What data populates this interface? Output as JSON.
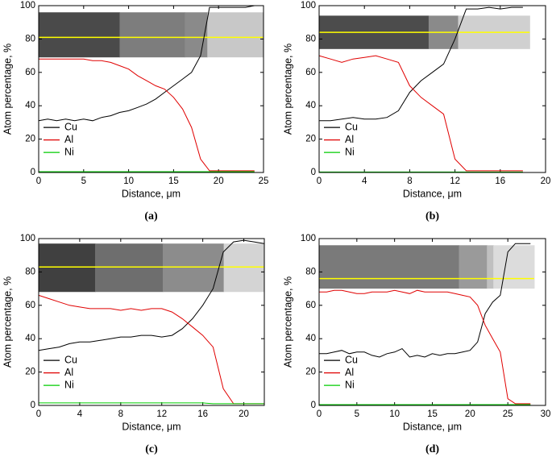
{
  "chart_data": [
    {
      "type": "line",
      "label": "(a)",
      "xlabel": "Distance, μm",
      "ylabel": "Atom percentage, %",
      "xlim": [
        0,
        25
      ],
      "xticks": [
        0,
        5,
        10,
        15,
        20,
        25
      ],
      "ylim": [
        0,
        100
      ],
      "yticks": [
        0,
        20,
        40,
        60,
        80,
        100
      ],
      "x": [
        0,
        1,
        2,
        3,
        4,
        5,
        6,
        7,
        8,
        9,
        10,
        11,
        12,
        13,
        14,
        15,
        16,
        17,
        18,
        19,
        20,
        21,
        22,
        23,
        24
      ],
      "series": [
        {
          "name": "Cu",
          "color": "#000000",
          "values": [
            31,
            32,
            31,
            32,
            31,
            32,
            31,
            33,
            34,
            36,
            37,
            39,
            41,
            44,
            48,
            52,
            56,
            60,
            70,
            99,
            99,
            99,
            99,
            99,
            100
          ]
        },
        {
          "name": "Al",
          "color": "#e00000",
          "values": [
            68,
            68,
            68,
            68,
            68,
            68,
            67,
            67,
            66,
            64,
            62,
            58,
            55,
            52,
            50,
            45,
            38,
            27,
            8,
            1,
            1,
            1,
            1,
            1,
            1
          ]
        },
        {
          "name": "Ni",
          "color": "#00cc00",
          "values": [
            0.5,
            0.5,
            0.5,
            0.5,
            0.5,
            0.5,
            0.5,
            0.5,
            0.5,
            0.5,
            0.5,
            0.5,
            0.5,
            0.5,
            0.5,
            0.5,
            0.5,
            0.5,
            0.5,
            0.5,
            0.5,
            0.5,
            0.5,
            0.5,
            0.5
          ]
        }
      ]
    },
    {
      "type": "line",
      "label": "(b)",
      "xlabel": "Distance, μm",
      "ylabel": "Atom percentage, %",
      "xlim": [
        0,
        20
      ],
      "xticks": [
        0,
        4,
        8,
        12,
        16,
        20
      ],
      "ylim": [
        0,
        100
      ],
      "yticks": [
        0,
        20,
        40,
        60,
        80,
        100
      ],
      "x": [
        0,
        1,
        2,
        3,
        4,
        5,
        6,
        7,
        8,
        9,
        10,
        11,
        12,
        13,
        14,
        15,
        16,
        17,
        18
      ],
      "series": [
        {
          "name": "Cu",
          "color": "#000000",
          "values": [
            31,
            31,
            32,
            33,
            32,
            32,
            33,
            37,
            48,
            55,
            60,
            65,
            80,
            98,
            98,
            99,
            98,
            99,
            99
          ]
        },
        {
          "name": "Al",
          "color": "#e00000",
          "values": [
            70,
            68,
            66,
            68,
            69,
            70,
            68,
            66,
            52,
            45,
            40,
            35,
            8,
            1,
            1,
            1,
            1,
            1,
            1
          ]
        },
        {
          "name": "Ni",
          "color": "#00cc00",
          "values": [
            0.3,
            0.3,
            0.3,
            0.3,
            0.3,
            0.3,
            0.3,
            0.3,
            0.3,
            0.3,
            0.3,
            0.3,
            0.3,
            0.3,
            0.3,
            0.3,
            0.3,
            0.3,
            0.3
          ]
        }
      ]
    },
    {
      "type": "line",
      "label": "(c)",
      "xlabel": "Distance, μm",
      "ylabel": "Atom percentage, %",
      "xlim": [
        0,
        22
      ],
      "xticks": [
        0,
        4,
        8,
        12,
        16,
        20
      ],
      "ylim": [
        0,
        100
      ],
      "yticks": [
        0,
        20,
        40,
        60,
        80,
        100
      ],
      "x": [
        0,
        1,
        2,
        3,
        4,
        5,
        6,
        7,
        8,
        9,
        10,
        11,
        12,
        13,
        14,
        15,
        16,
        17,
        18,
        19,
        20,
        21,
        22
      ],
      "series": [
        {
          "name": "Cu",
          "color": "#000000",
          "values": [
            33,
            34,
            35,
            37,
            38,
            38,
            39,
            40,
            41,
            41,
            42,
            42,
            41,
            42,
            46,
            52,
            60,
            70,
            92,
            98,
            99,
            98,
            97
          ]
        },
        {
          "name": "Al",
          "color": "#e00000",
          "values": [
            66,
            64,
            62,
            60,
            59,
            58,
            58,
            58,
            57,
            58,
            57,
            58,
            58,
            56,
            52,
            47,
            42,
            35,
            10,
            1,
            1,
            1,
            1
          ]
        },
        {
          "name": "Ni",
          "color": "#00cc00",
          "values": [
            1.5,
            1.5,
            1.5,
            1.5,
            1.5,
            1.5,
            1.5,
            1.5,
            1.5,
            1.5,
            1.5,
            1.5,
            1.5,
            1.5,
            1.5,
            1.5,
            1.5,
            1,
            1,
            1,
            1,
            1,
            1
          ]
        }
      ]
    },
    {
      "type": "line",
      "label": "(d)",
      "xlabel": "Distance, μm",
      "ylabel": "Atom percentage, %",
      "xlim": [
        0,
        30
      ],
      "xticks": [
        0,
        5,
        10,
        15,
        20,
        25,
        30
      ],
      "ylim": [
        0,
        100
      ],
      "yticks": [
        0,
        20,
        40,
        60,
        80,
        100
      ],
      "x": [
        0,
        1,
        2,
        3,
        4,
        5,
        6,
        7,
        8,
        9,
        10,
        11,
        12,
        13,
        14,
        15,
        16,
        17,
        18,
        19,
        20,
        21,
        22,
        23,
        24,
        25,
        26,
        27,
        28
      ],
      "series": [
        {
          "name": "Cu",
          "color": "#000000",
          "values": [
            31,
            31,
            32,
            33,
            31,
            32,
            32,
            30,
            29,
            31,
            32,
            34,
            29,
            30,
            29,
            31,
            30,
            31,
            31,
            32,
            33,
            38,
            55,
            62,
            66,
            92,
            97,
            97,
            97
          ]
        },
        {
          "name": "Al",
          "color": "#e00000",
          "values": [
            68,
            68,
            69,
            69,
            68,
            67,
            67,
            68,
            68,
            68,
            69,
            68,
            67,
            69,
            68,
            68,
            68,
            68,
            67,
            66,
            65,
            60,
            48,
            40,
            32,
            4,
            1,
            1,
            1
          ]
        },
        {
          "name": "Ni",
          "color": "#00cc00",
          "values": [
            0.5,
            0.5,
            0.5,
            0.5,
            0.5,
            0.5,
            0.5,
            0.5,
            0.5,
            0.5,
            0.5,
            0.5,
            0.5,
            0.5,
            0.5,
            0.5,
            0.5,
            0.5,
            0.5,
            0.5,
            0.5,
            0.5,
            0.5,
            0.5,
            0.5,
            0.5,
            0.5,
            0.5,
            0.5
          ]
        }
      ]
    }
  ]
}
